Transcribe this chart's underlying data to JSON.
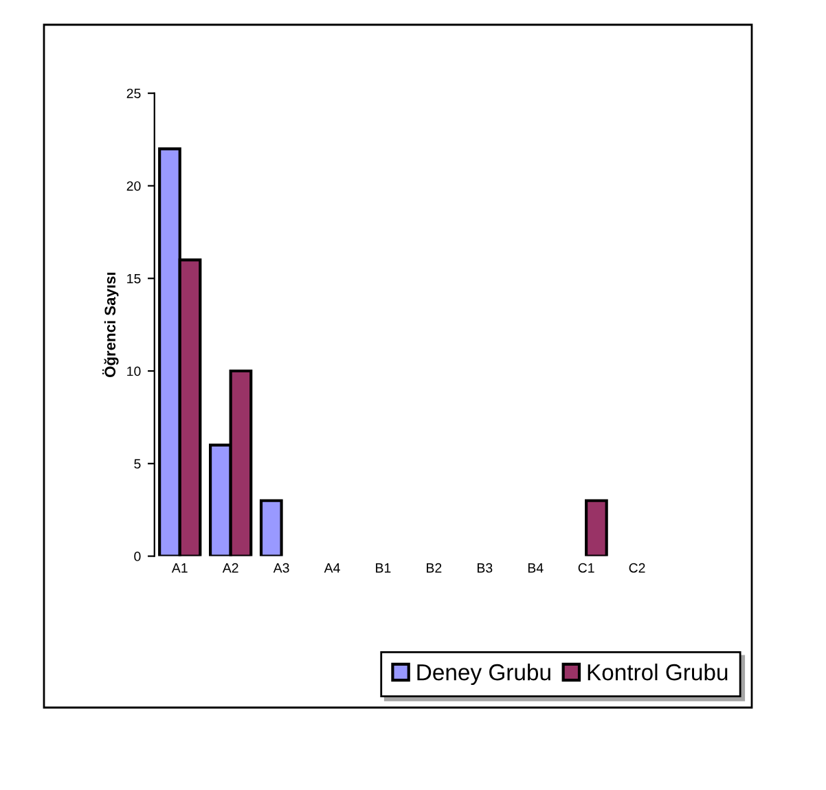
{
  "chart_data": {
    "type": "bar",
    "ylabel": "Öğrenci Sayısı",
    "categories": [
      "A1",
      "A2",
      "A3",
      "A4",
      "B1",
      "B2",
      "B3",
      "B4",
      "C1",
      "C2"
    ],
    "series": [
      {
        "name": "Deney Grubu",
        "color": "#9999ff",
        "values": [
          22,
          6,
          3,
          0,
          0,
          0,
          0,
          0,
          0,
          0
        ]
      },
      {
        "name": "Kontrol Grubu",
        "color": "#993366",
        "values": [
          16,
          10,
          0,
          0,
          0,
          0,
          0,
          0,
          3,
          0
        ]
      }
    ],
    "ylim": [
      0,
      25
    ],
    "yticks": [
      0,
      5,
      10,
      15,
      20,
      25
    ],
    "grid": false,
    "legend": "bottom right"
  }
}
